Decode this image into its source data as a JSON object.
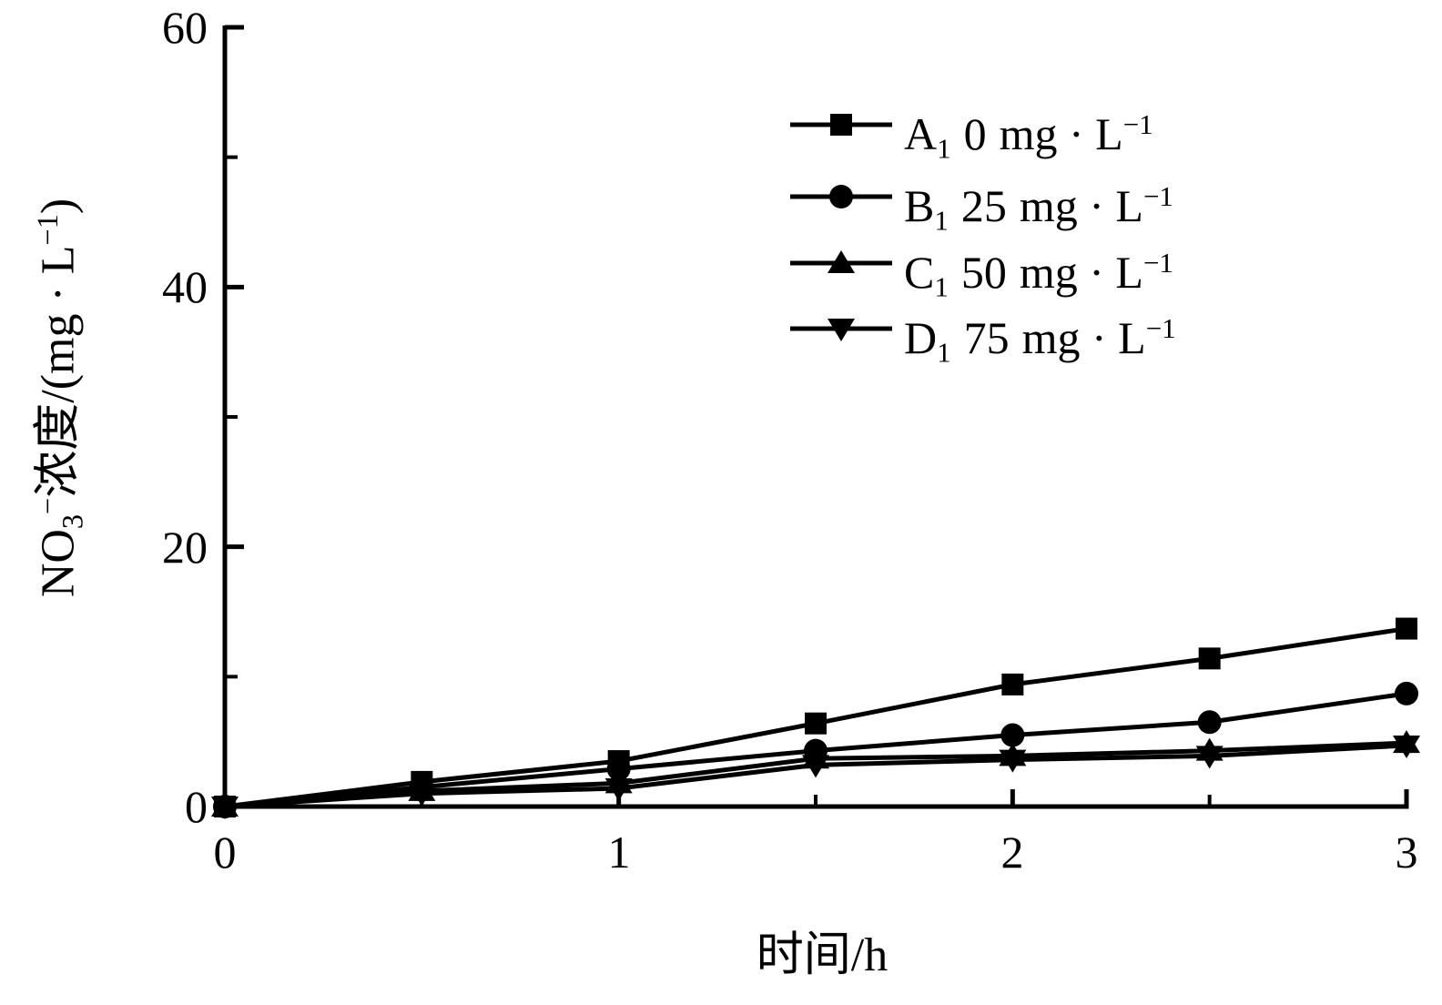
{
  "figure": {
    "background_color": "#ffffff",
    "ink_color": "#000000"
  },
  "chart_data": {
    "type": "line",
    "title": "",
    "xlabel": "时间/h",
    "ylabel": "NO₃⁻浓度/(mg·L⁻¹)",
    "xlim": [
      0,
      3
    ],
    "ylim": [
      0,
      60
    ],
    "grid": false,
    "legend_position": "upper-right-inside",
    "x_major_ticks": [
      0,
      1,
      2,
      3
    ],
    "x_minor_ticks": [
      0.5,
      1.5,
      2.5
    ],
    "y_major_ticks": [
      0,
      20,
      40,
      60
    ],
    "y_minor_ticks": [
      10,
      30,
      50
    ],
    "x": [
      0,
      0.5,
      1,
      1.5,
      2,
      2.5,
      3
    ],
    "series": [
      {
        "name": "A1",
        "treatment_mg_per_L": 0,
        "marker": "square",
        "values": [
          0,
          1.9,
          3.5,
          6.4,
          9.4,
          11.4,
          13.7
        ]
      },
      {
        "name": "B1",
        "treatment_mg_per_L": 25,
        "marker": "circle",
        "values": [
          0,
          1.5,
          2.9,
          4.3,
          5.5,
          6.5,
          8.7
        ]
      },
      {
        "name": "C1",
        "treatment_mg_per_L": 50,
        "marker": "triangle-up",
        "values": [
          0,
          1.2,
          1.8,
          3.7,
          3.9,
          4.3,
          4.9
        ]
      },
      {
        "name": "D1",
        "treatment_mg_per_L": 75,
        "marker": "triangle-down",
        "values": [
          0,
          1.0,
          1.4,
          3.2,
          3.6,
          3.9,
          4.7
        ]
      }
    ]
  },
  "axes": {
    "x_tick_labels": [
      "0",
      "1",
      "2",
      "3"
    ],
    "y_tick_labels": [
      "0",
      "20",
      "40",
      "60"
    ],
    "xlabel_text": "时间/h",
    "ylabel_parts": {
      "p1": "NO",
      "p2": "3",
      "p3": "−",
      "p4": "浓度/(mg · L",
      "p5": "−1",
      "p6": ")"
    }
  },
  "legend": {
    "items": [
      {
        "letter": "A",
        "letter_sub": "1",
        "amount": "0",
        "unit": "mg · L",
        "unit_sup": "−1",
        "marker": "square"
      },
      {
        "letter": "B",
        "letter_sub": "1",
        "amount": "25",
        "unit": "mg · L",
        "unit_sup": "−1",
        "marker": "circle"
      },
      {
        "letter": "C",
        "letter_sub": "1",
        "amount": "50",
        "unit": "mg · L",
        "unit_sup": "−1",
        "marker": "triangle-up"
      },
      {
        "letter": "D",
        "letter_sub": "1",
        "amount": "75",
        "unit": "mg · L",
        "unit_sup": "−1",
        "marker": "triangle-down"
      }
    ]
  }
}
